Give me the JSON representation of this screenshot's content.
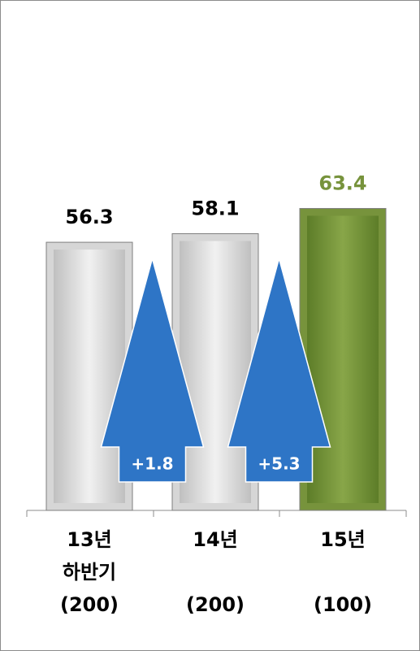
{
  "chart_data": {
    "type": "bar",
    "categories": [
      "13년\n하반기",
      "14년",
      "15년"
    ],
    "sample_sizes": [
      "(200)",
      "(200)",
      "(100)"
    ],
    "values": [
      56.3,
      58.1,
      63.4
    ],
    "colors": [
      "#d6d6d6",
      "#d6d6d6",
      "#77933c"
    ],
    "label_colors": [
      "#000000",
      "#000000",
      "#77933c"
    ],
    "annotations": [
      "+1.8",
      "+5.3"
    ],
    "annotation_color": "#2e75c6"
  }
}
